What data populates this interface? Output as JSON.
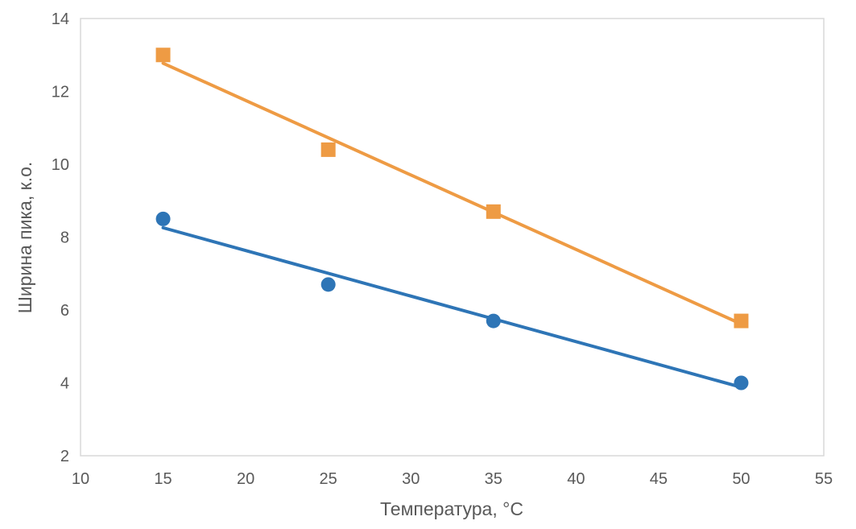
{
  "chart_data": {
    "type": "scatter",
    "xlabel": "Температура, °C",
    "ylabel": "Ширина пика, к.о.",
    "xlim": [
      10,
      55
    ],
    "ylim": [
      2,
      14
    ],
    "xticks": [
      10,
      15,
      20,
      25,
      30,
      35,
      40,
      45,
      50,
      55
    ],
    "yticks": [
      2,
      4,
      6,
      8,
      10,
      12,
      14
    ],
    "grid": false,
    "legend": false,
    "series": [
      {
        "name": "orange-squares",
        "marker": "square",
        "color": "#EE9B44",
        "x": [
          15,
          25,
          35,
          50
        ],
        "y": [
          13.0,
          10.4,
          8.7,
          5.7
        ],
        "trendline": true
      },
      {
        "name": "blue-circles",
        "marker": "circle",
        "color": "#2E75B6",
        "x": [
          15,
          25,
          35,
          50
        ],
        "y": [
          8.5,
          6.7,
          5.7,
          4.0
        ],
        "trendline": true
      }
    ],
    "colors": {
      "axis_text": "#595959",
      "plot_border": "#D9D9D9",
      "background": "#FFFFFF"
    }
  }
}
